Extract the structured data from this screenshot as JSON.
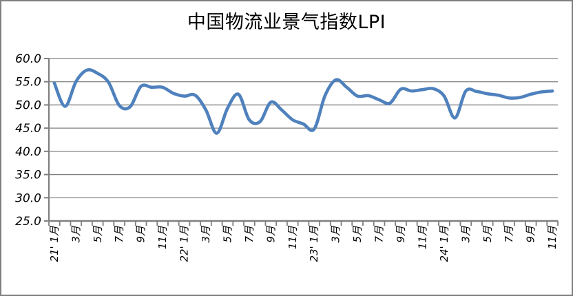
{
  "title": "中国物流业景气指数LPI",
  "chart_data": {
    "type": "line",
    "series": [
      {
        "name": "LPI",
        "color": "#4F81BD",
        "values": [
          54.7,
          49.7,
          55.0,
          57.5,
          56.8,
          54.9,
          49.9,
          49.6,
          54.0,
          53.8,
          53.8,
          52.5,
          51.9,
          52.1,
          48.9,
          43.9,
          49.3,
          52.3,
          46.8,
          46.4,
          50.6,
          48.9,
          46.8,
          45.9,
          44.8,
          52.0,
          55.4,
          53.8,
          51.9,
          52.0,
          51.1,
          50.4,
          53.4,
          53.0,
          53.3,
          53.5,
          51.9,
          47.2,
          53.0,
          52.9,
          52.4,
          52.1,
          51.5,
          51.6,
          52.3,
          52.8,
          53.0
        ]
      }
    ],
    "x_frequency": "monthly",
    "x_tick_labels": [
      "21' 1月",
      "3月",
      "5月",
      "7月",
      "9月",
      "11月",
      "22' 1月",
      "3月",
      "5月",
      "7月",
      "9月",
      "11月",
      "23' 1月",
      "3月",
      "5月",
      "7月",
      "9月",
      "11月",
      "24' 1月",
      "3月",
      "5月",
      "7月",
      "9月",
      "11月"
    ],
    "x_label_interval": 2,
    "ylim": [
      25,
      60
    ],
    "ytick_step": 5,
    "ytick_labels": [
      "60.0",
      "55.0",
      "50.0",
      "45.0",
      "40.0",
      "35.0",
      "30.0",
      "25.0"
    ],
    "grid": true,
    "legend": "none",
    "grid_color": "#808080",
    "axis_color": "#808080",
    "tick_color": "#808080",
    "line_color": "#4F81BD",
    "background_color": "#FFFFFF",
    "border_color": "#7F7F7F"
  }
}
